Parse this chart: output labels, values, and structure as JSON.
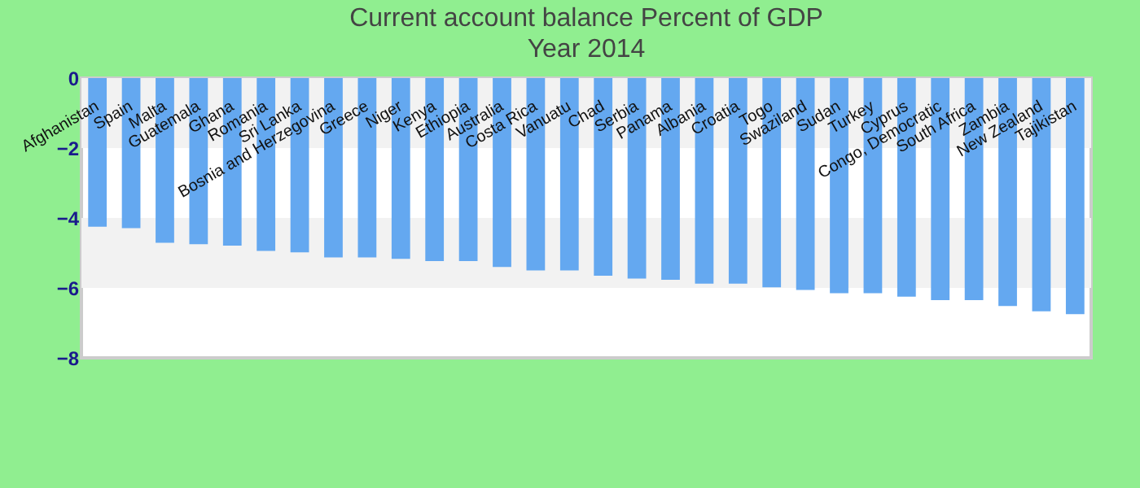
{
  "chart_data": {
    "type": "bar",
    "title": "Current account balance  Percent of GDP",
    "subtitle": "Year 2014",
    "categories": [
      "Afghanistan",
      "Spain",
      "Malta",
      "Guatemala",
      "Ghana",
      "Romania",
      "Sri Lanka",
      "Bosnia and Herzegovina",
      "Greece",
      "Niger",
      "Kenya",
      "Ethiopia",
      "Australia",
      "Costa Rica",
      "Vanuatu",
      "Chad",
      "Serbia",
      "Panama",
      "Albania",
      "Croatia",
      "Togo",
      "Swaziland",
      "Sudan",
      "Turkey",
      "Cyprus",
      "Congo, Democratic",
      "South Africa",
      "Zambia",
      "New Zealand",
      "Tajikistan"
    ],
    "values": [
      -4.25,
      -4.29,
      -4.71,
      -4.75,
      -4.79,
      -4.94,
      -4.98,
      -5.13,
      -5.13,
      -5.17,
      -5.23,
      -5.23,
      -5.4,
      -5.5,
      -5.5,
      -5.65,
      -5.73,
      -5.77,
      -5.88,
      -5.88,
      -5.98,
      -6.06,
      -6.15,
      -6.15,
      -6.25,
      -6.35,
      -6.35,
      -6.52,
      -6.67,
      -6.75
    ],
    "color": "#64a8f0",
    "ylim": [
      -8,
      0
    ],
    "yticks": [
      0,
      -2,
      -4,
      -6,
      -8
    ],
    "grid": false,
    "bands": [
      {
        "axis": "y",
        "from": 0,
        "to": -2,
        "color": "#f2f2f2"
      },
      {
        "axis": "y",
        "from": -4,
        "to": -6,
        "color": "#f2f2f2"
      }
    ]
  }
}
